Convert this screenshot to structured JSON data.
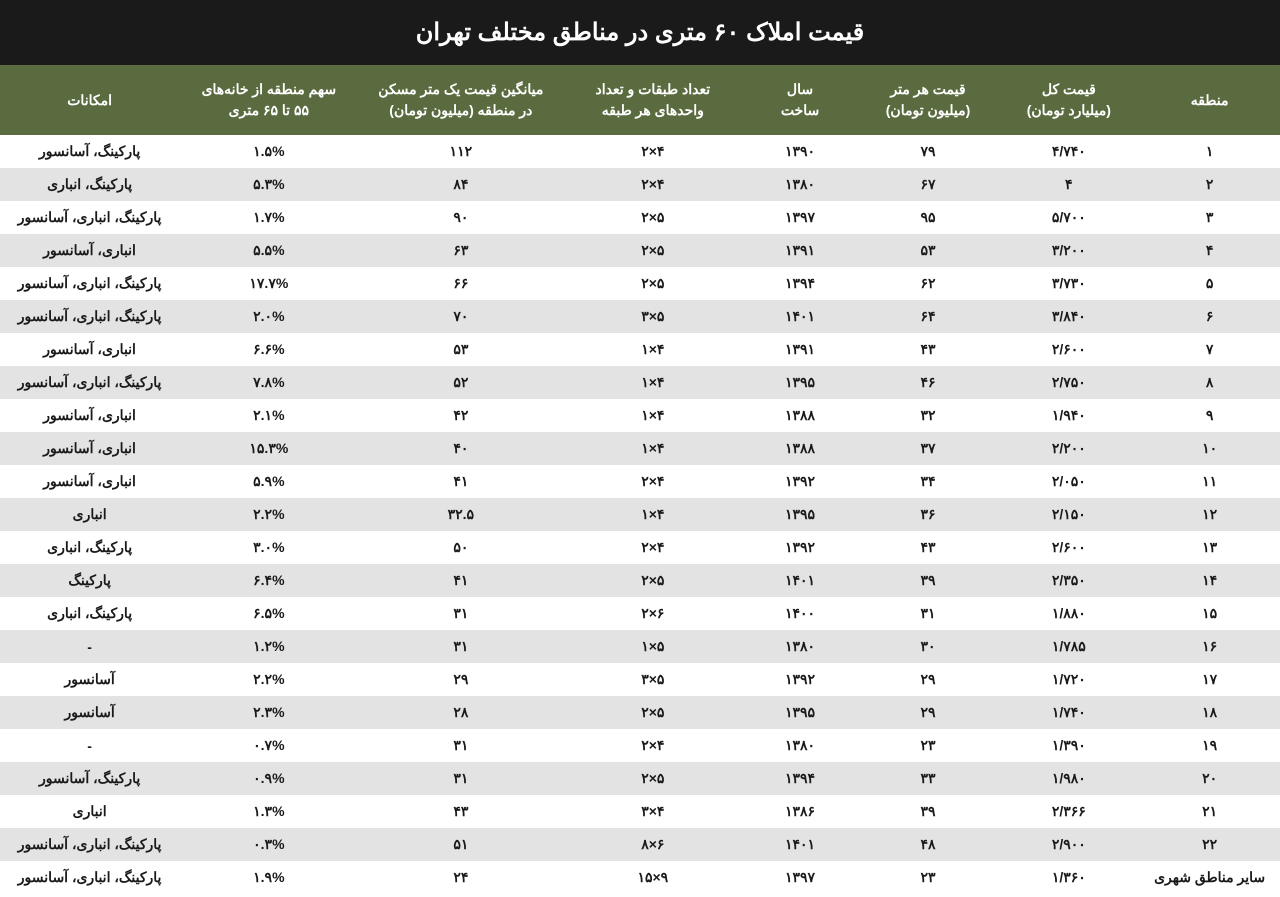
{
  "title": "قیمت املاک ۶۰ متری در مناطق مختلف تهران",
  "colors": {
    "title_bg": "#1a1a1a",
    "title_fg": "#ffffff",
    "header_bg": "#5a6b3f",
    "header_fg": "#ffffff",
    "row_odd": "#ffffff",
    "row_even": "#e3e3e3",
    "text": "#1a1a1a"
  },
  "columns": [
    "منطقه",
    "قیمت کل\n(میلیارد تومان)",
    "قیمت هر متر\n(میلیون تومان)",
    "سال\nساخت",
    "تعداد طبقات و تعداد\nواحدهای هر طبقه",
    "میانگین قیمت یک متر مسکن\nدر منطقه (میلیون تومان)",
    "سهم منطقه از خانه‌های\n۵۵ تا ۶۵ متری",
    "امکانات"
  ],
  "rows": [
    {
      "region": "۱",
      "total": "۴/۷۴۰",
      "per_meter": "۷۹",
      "year": "۱۳۹۰",
      "floors": "۴×۲",
      "avg": "۱۱۲",
      "share": "۱.۵%",
      "amenities": "پارکینگ، آسانسور"
    },
    {
      "region": "۲",
      "total": "۴",
      "per_meter": "۶۷",
      "year": "۱۳۸۰",
      "floors": "۴×۲",
      "avg": "۸۴",
      "share": "۵.۳%",
      "amenities": "پارکینگ، انباری"
    },
    {
      "region": "۳",
      "total": "۵/۷۰۰",
      "per_meter": "۹۵",
      "year": "۱۳۹۷",
      "floors": "۵×۲",
      "avg": "۹۰",
      "share": "۱.۷%",
      "amenities": "پارکینگ، انباری، آسانسور"
    },
    {
      "region": "۴",
      "total": "۳/۲۰۰",
      "per_meter": "۵۳",
      "year": "۱۳۹۱",
      "floors": "۵×۲",
      "avg": "۶۳",
      "share": "۵.۵%",
      "amenities": "انباری، آسانسور"
    },
    {
      "region": "۵",
      "total": "۳/۷۳۰",
      "per_meter": "۶۲",
      "year": "۱۳۹۴",
      "floors": "۵×۲",
      "avg": "۶۶",
      "share": "۱۷.۷%",
      "amenities": "پارکینگ، انباری، آسانسور"
    },
    {
      "region": "۶",
      "total": "۳/۸۴۰",
      "per_meter": "۶۴",
      "year": "۱۴۰۱",
      "floors": "۵×۳",
      "avg": "۷۰",
      "share": "۲.۰%",
      "amenities": "پارکینگ، انباری، آسانسور"
    },
    {
      "region": "۷",
      "total": "۲/۶۰۰",
      "per_meter": "۴۳",
      "year": "۱۳۹۱",
      "floors": "۴×۱",
      "avg": "۵۳",
      "share": "۶.۶%",
      "amenities": "انباری، آسانسور"
    },
    {
      "region": "۸",
      "total": "۲/۷۵۰",
      "per_meter": "۴۶",
      "year": "۱۳۹۵",
      "floors": "۴×۱",
      "avg": "۵۲",
      "share": "۷.۸%",
      "amenities": "پارکینگ، انباری، آسانسور"
    },
    {
      "region": "۹",
      "total": "۱/۹۴۰",
      "per_meter": "۳۲",
      "year": "۱۳۸۸",
      "floors": "۴×۱",
      "avg": "۴۲",
      "share": "۲.۱%",
      "amenities": "انباری، آسانسور"
    },
    {
      "region": "۱۰",
      "total": "۲/۲۰۰",
      "per_meter": "۳۷",
      "year": "۱۳۸۸",
      "floors": "۴×۱",
      "avg": "۴۰",
      "share": "۱۵.۳%",
      "amenities": "انباری، آسانسور"
    },
    {
      "region": "۱۱",
      "total": "۲/۰۵۰",
      "per_meter": "۳۴",
      "year": "۱۳۹۲",
      "floors": "۴×۲",
      "avg": "۴۱",
      "share": "۵.۹%",
      "amenities": "انباری، آسانسور"
    },
    {
      "region": "۱۲",
      "total": "۲/۱۵۰",
      "per_meter": "۳۶",
      "year": "۱۳۹۵",
      "floors": "۴×۱",
      "avg": "۳۲.۵",
      "share": "۲.۲%",
      "amenities": "انباری"
    },
    {
      "region": "۱۳",
      "total": "۲/۶۰۰",
      "per_meter": "۴۳",
      "year": "۱۳۹۲",
      "floors": "۴×۲",
      "avg": "۵۰",
      "share": "۳.۰%",
      "amenities": "پارکینگ، انباری"
    },
    {
      "region": "۱۴",
      "total": "۲/۳۵۰",
      "per_meter": "۳۹",
      "year": "۱۴۰۱",
      "floors": "۵×۲",
      "avg": "۴۱",
      "share": "۶.۴%",
      "amenities": "پارکینگ"
    },
    {
      "region": "۱۵",
      "total": "۱/۸۸۰",
      "per_meter": "۳۱",
      "year": "۱۴۰۰",
      "floors": "۶×۲",
      "avg": "۳۱",
      "share": "۶.۵%",
      "amenities": "پارکینگ، انباری"
    },
    {
      "region": "۱۶",
      "total": "۱/۷۸۵",
      "per_meter": "۳۰",
      "year": "۱۳۸۰",
      "floors": "۵×۱",
      "avg": "۳۱",
      "share": "۱.۲%",
      "amenities": "-"
    },
    {
      "region": "۱۷",
      "total": "۱/۷۲۰",
      "per_meter": "۲۹",
      "year": "۱۳۹۲",
      "floors": "۵×۳",
      "avg": "۲۹",
      "share": "۲.۲%",
      "amenities": "آسانسور"
    },
    {
      "region": "۱۸",
      "total": "۱/۷۴۰",
      "per_meter": "۲۹",
      "year": "۱۳۹۵",
      "floors": "۵×۲",
      "avg": "۲۸",
      "share": "۲.۳%",
      "amenities": "آسانسور"
    },
    {
      "region": "۱۹",
      "total": "۱/۳۹۰",
      "per_meter": "۲۳",
      "year": "۱۳۸۰",
      "floors": "۴×۲",
      "avg": "۳۱",
      "share": "۰.۷%",
      "amenities": "-"
    },
    {
      "region": "۲۰",
      "total": "۱/۹۸۰",
      "per_meter": "۳۳",
      "year": "۱۳۹۴",
      "floors": "۵×۲",
      "avg": "۳۱",
      "share": "۰.۹%",
      "amenities": "پارکینگ، آسانسور"
    },
    {
      "region": "۲۱",
      "total": "۲/۳۶۶",
      "per_meter": "۳۹",
      "year": "۱۳۸۶",
      "floors": "۴×۳",
      "avg": "۴۳",
      "share": "۱.۳%",
      "amenities": "انباری"
    },
    {
      "region": "۲۲",
      "total": "۲/۹۰۰",
      "per_meter": "۴۸",
      "year": "۱۴۰۱",
      "floors": "۶×۸",
      "avg": "۵۱",
      "share": "۰.۳%",
      "amenities": "پارکینگ، انباری، آسانسور"
    },
    {
      "region": "سایر مناطق شهری",
      "total": "۱/۳۶۰",
      "per_meter": "۲۳",
      "year": "۱۳۹۷",
      "floors": "۹×۱۵",
      "avg": "۲۴",
      "share": "۱.۹%",
      "amenities": "پارکینگ، انباری، آسانسور"
    }
  ]
}
